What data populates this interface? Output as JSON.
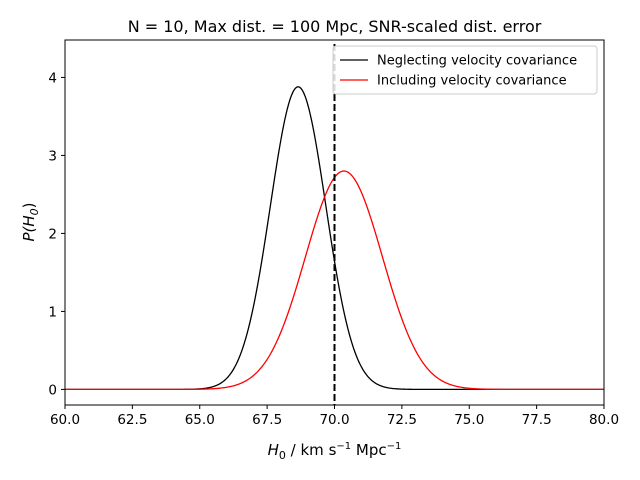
{
  "chart_data": {
    "type": "line",
    "title": "N = 10, Max dist. = 100 Mpc, SNR-scaled dist. error",
    "xlabel": {
      "main": "H",
      "sub": "0",
      "unit_prefix": " / km s",
      "exp1": "−1",
      "unit_mid": " Mpc",
      "exp2": "−1"
    },
    "ylabel": {
      "main": "P(H",
      "sub": "0",
      "close": ")"
    },
    "xlim": [
      60,
      80
    ],
    "ylim": [
      -0.2,
      4.48
    ],
    "x_ticks": [
      60,
      62.5,
      65,
      67.5,
      70,
      72.5,
      75,
      77.5,
      80
    ],
    "x_tick_labels": [
      "60.0",
      "62.5",
      "65.0",
      "67.5",
      "70.0",
      "72.5",
      "75.0",
      "77.5",
      "80.0"
    ],
    "y_ticks": [
      0,
      1,
      2,
      3,
      4
    ],
    "y_tick_labels": [
      "0",
      "1",
      "2",
      "3",
      "4"
    ],
    "true_value_line": {
      "x": 70.0,
      "style": "dashed",
      "color": "#000000"
    },
    "series": [
      {
        "name": "Neglecting velocity covariance",
        "color": "#000000",
        "model": "gaussian",
        "mean": 68.65,
        "sigma": 1.03,
        "peak": 3.88
      },
      {
        "name": "Including velocity covariance",
        "color": "#ff0000",
        "model": "gaussian",
        "mean": 70.35,
        "sigma": 1.43,
        "peak": 2.8
      }
    ],
    "legend": {
      "position": "top-right"
    },
    "grid": false
  }
}
